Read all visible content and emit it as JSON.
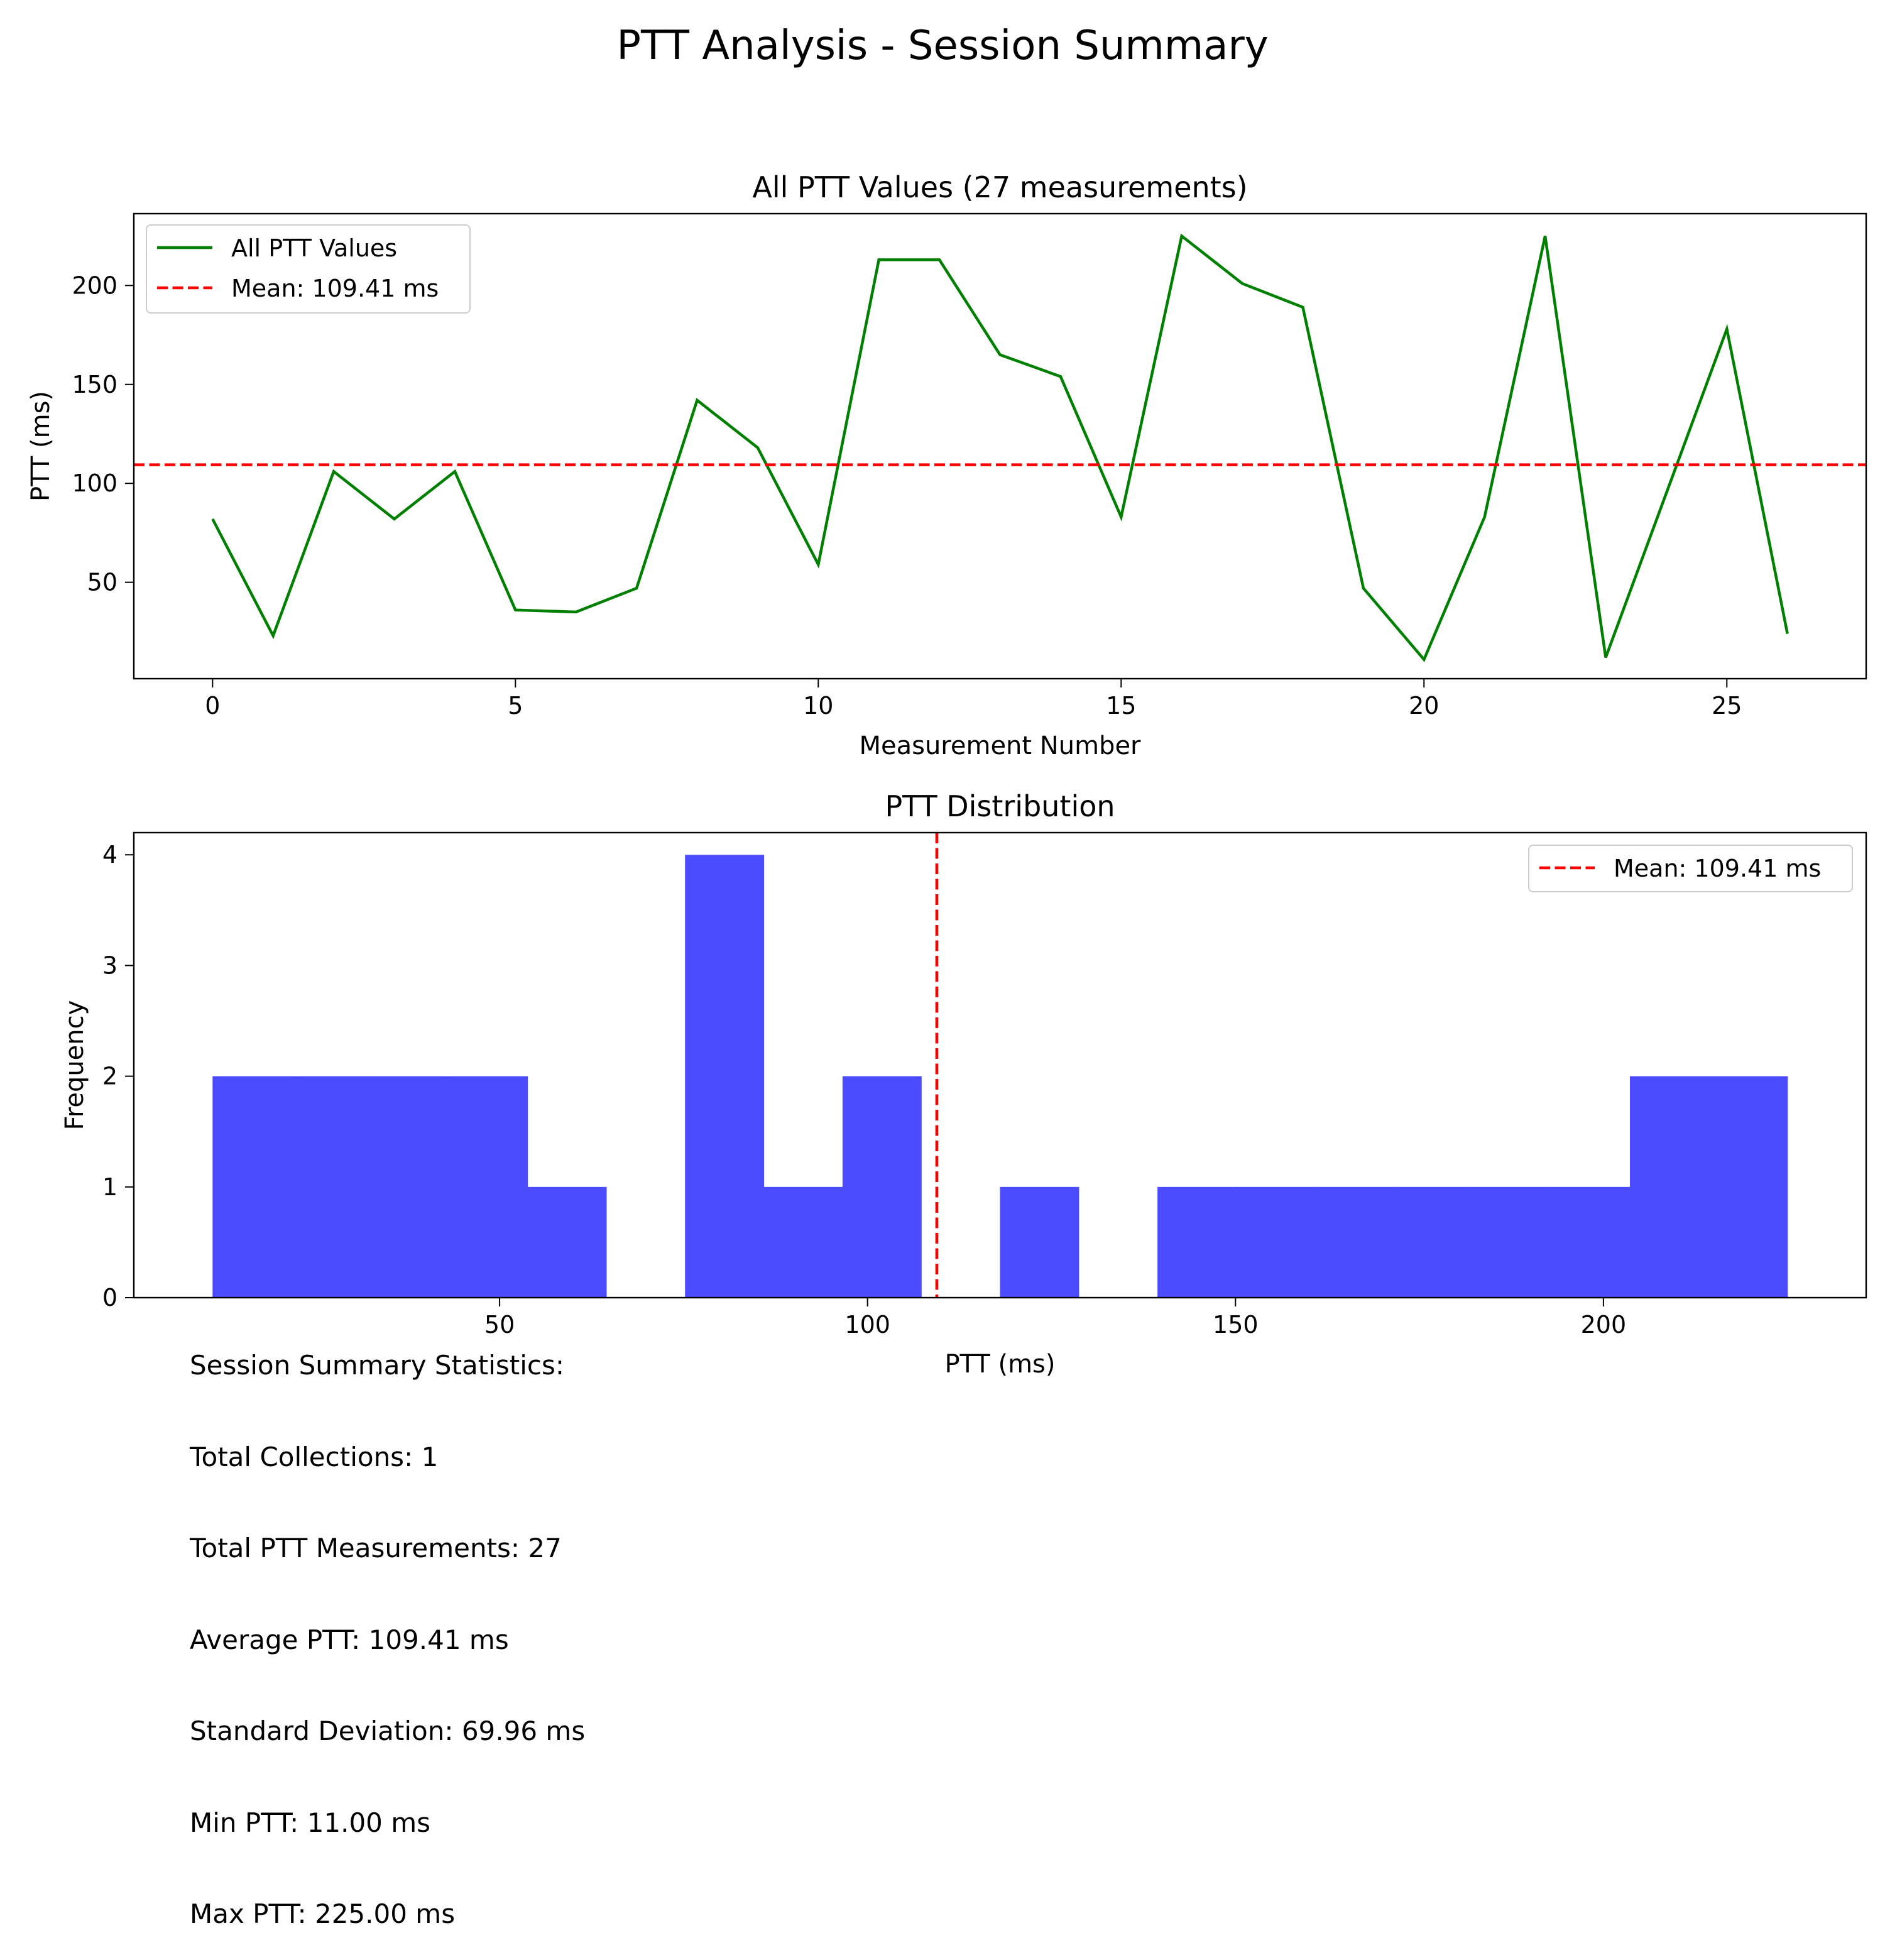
{
  "figure": {
    "title": "PTT Analysis - Session Summary"
  },
  "chart_data": [
    {
      "type": "line",
      "title": "All PTT Values (27 measurements)",
      "xlabel": "Measurement Number",
      "ylabel": "PTT (ms)",
      "xlim": [
        -1.3,
        27.3
      ],
      "ylim": [
        1.3,
        236.3
      ],
      "xticks": [
        0,
        5,
        10,
        15,
        20,
        25
      ],
      "yticks": [
        50,
        100,
        150,
        200
      ],
      "grid": false,
      "legend_position": "upper-left",
      "series": [
        {
          "name": "All PTT Values",
          "color": "#008000",
          "x": [
            0,
            1,
            2,
            3,
            4,
            5,
            6,
            7,
            8,
            9,
            10,
            11,
            12,
            13,
            14,
            15,
            16,
            17,
            18,
            19,
            20,
            21,
            22,
            23,
            24,
            25,
            26
          ],
          "y": [
            82,
            23,
            106,
            82,
            106,
            36,
            35,
            47,
            142,
            118,
            59,
            213,
            213,
            165,
            154,
            83,
            225,
            201,
            189,
            47,
            11,
            83,
            225,
            12,
            95,
            178,
            24
          ]
        }
      ],
      "hlines": [
        {
          "name": "Mean: 109.41 ms",
          "y": 109.41,
          "color": "#ff0000",
          "style": "dashed"
        }
      ]
    },
    {
      "type": "bar",
      "title": "PTT Distribution",
      "xlabel": "PTT (ms)",
      "ylabel": "Frequency",
      "xlim": [
        0.3,
        235.7
      ],
      "ylim": [
        0,
        4.2
      ],
      "xticks": [
        50,
        100,
        150,
        200
      ],
      "yticks": [
        0,
        1,
        2,
        3,
        4
      ],
      "grid": false,
      "legend_position": "upper-right",
      "bar_color": "#4b4bff",
      "bin_edges": [
        11,
        21.7,
        32.4,
        43.1,
        53.8,
        64.5,
        75.2,
        85.9,
        96.6,
        107.3,
        118,
        128.7,
        139.4,
        150.1,
        160.8,
        171.5,
        182.2,
        192.9,
        203.6,
        214.3,
        225
      ],
      "counts": [
        2,
        2,
        2,
        2,
        1,
        0,
        4,
        1,
        2,
        0,
        1,
        0,
        1,
        1,
        1,
        1,
        1,
        1,
        2,
        2
      ],
      "vlines": [
        {
          "name": "Mean: 109.41 ms",
          "x": 109.41,
          "color": "#ff0000",
          "style": "dashed"
        }
      ]
    }
  ],
  "stats": {
    "lines": [
      "Session Summary Statistics:",
      "Total Collections: 1",
      "Total PTT Measurements: 27",
      "Average PTT: 109.41 ms",
      "Standard Deviation: 69.96 ms",
      "Min PTT: 11.00 ms",
      "Max PTT: 225.00 ms"
    ]
  }
}
